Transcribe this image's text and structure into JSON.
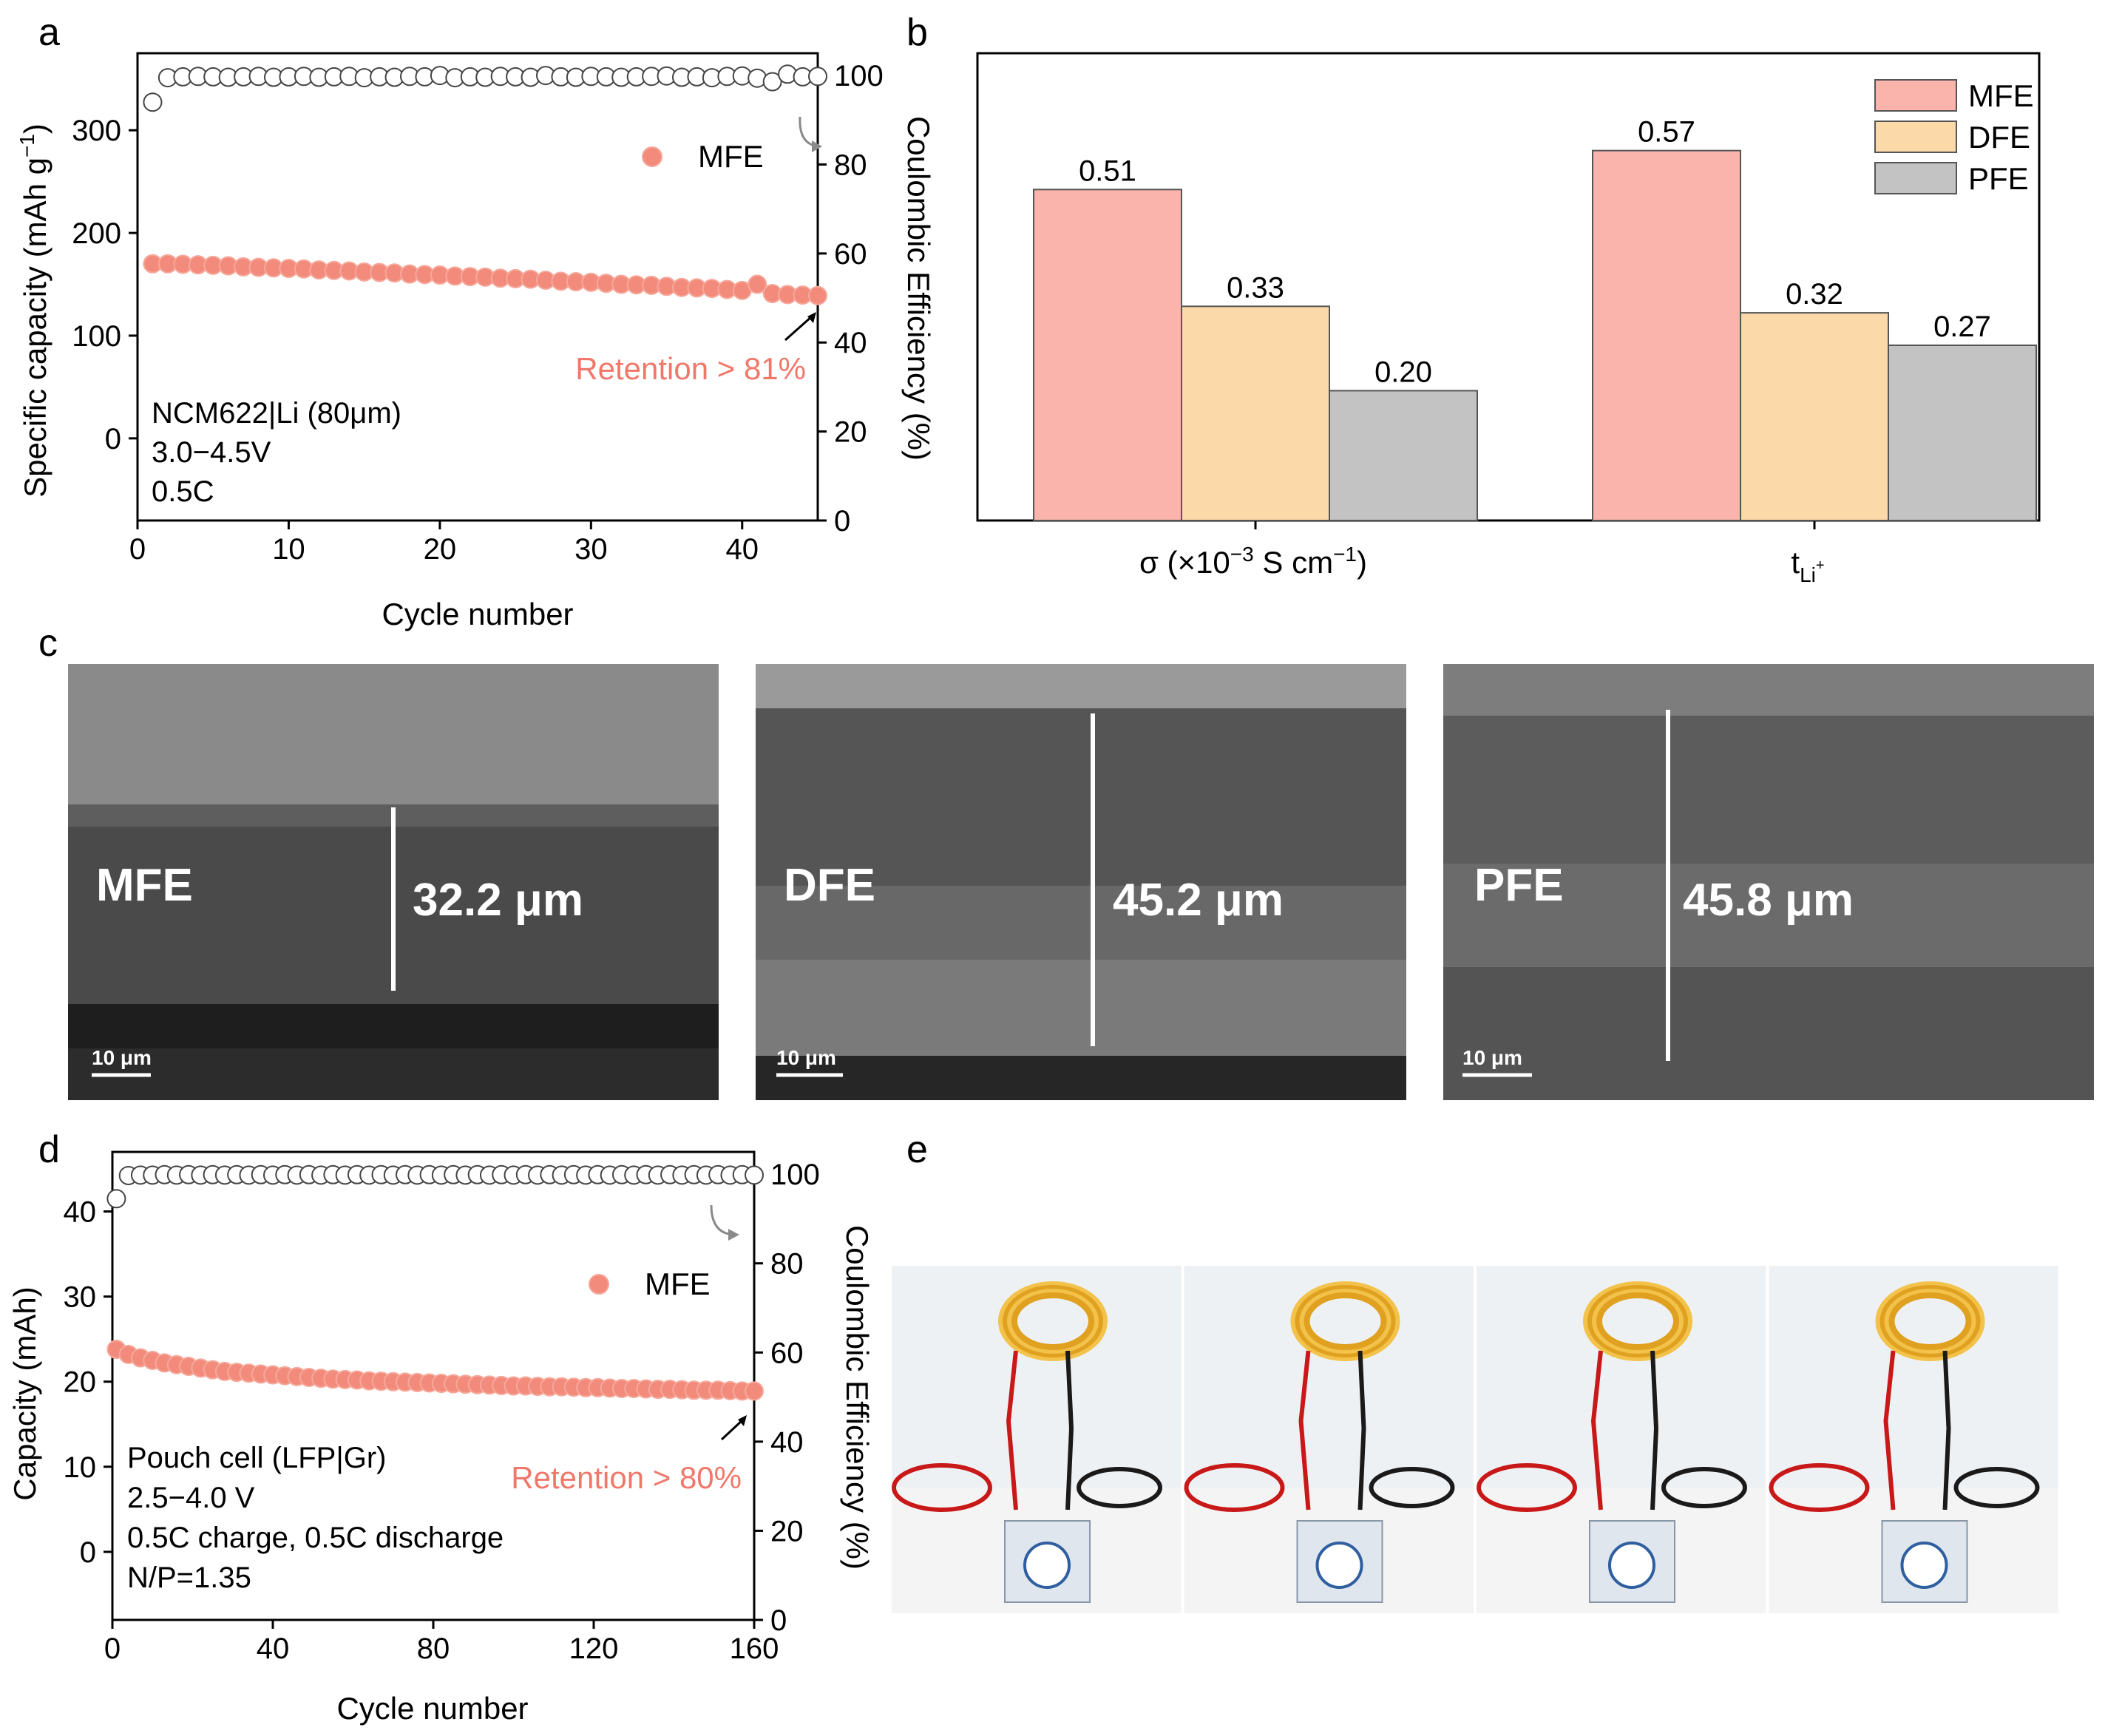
{
  "panel_letters": {
    "a": "a",
    "b": "b",
    "c": "c",
    "d": "d",
    "e": "e"
  },
  "colors": {
    "mfe": "#f28b7b",
    "mfe_bar": "#fbb4ac",
    "dfe_bar": "#fbd9a8",
    "pfe_bar": "#c3c3c3",
    "retention_text": "#f0786a",
    "arrow_gray": "#8a8a8a"
  },
  "chart_data": [
    {
      "id": "a",
      "type": "scatter",
      "xlabel": "Cycle number",
      "ylabel_main": "Specific capacity (mAh g",
      "ylabel_sup": "−1",
      "ylabel_close": ")",
      "y2label": "Coulombic Efficiency (%)",
      "xlim": [
        0,
        45
      ],
      "ylim": [
        -80,
        375
      ],
      "y2lim": [
        0,
        105
      ],
      "xticks": [
        "0",
        "10",
        "20",
        "30",
        "40"
      ],
      "yticks": [
        "0",
        "100",
        "200",
        "300"
      ],
      "y2ticks": [
        "0",
        "20",
        "40",
        "60",
        "80",
        "100"
      ],
      "legend": "MFE",
      "retention_label": "Retention > 81%",
      "notes": [
        "NCM622|Li (80μm)",
        "3.0−4.5V",
        "0.5C"
      ],
      "capacity_series": {
        "name": "MFE",
        "x": [
          1,
          2,
          3,
          4,
          5,
          6,
          7,
          8,
          9,
          10,
          11,
          12,
          13,
          14,
          15,
          16,
          17,
          18,
          19,
          20,
          21,
          22,
          23,
          24,
          25,
          26,
          27,
          28,
          29,
          30,
          31,
          32,
          33,
          34,
          35,
          36,
          37,
          38,
          39,
          40,
          41,
          42,
          43,
          44,
          45
        ],
        "values": [
          170,
          170,
          169.5,
          169,
          168.5,
          168,
          167,
          166.5,
          166,
          165.5,
          165,
          164,
          163.5,
          163,
          162,
          161.5,
          161,
          160,
          159.5,
          159,
          158,
          157.5,
          157,
          156,
          155.5,
          155,
          154,
          153,
          152.5,
          152,
          151,
          150,
          149.5,
          149,
          148,
          147,
          146.5,
          146,
          145,
          144,
          150,
          141,
          140,
          139.5,
          139
        ]
      },
      "ce_series": {
        "name": "CE",
        "x": [
          1,
          2,
          3,
          4,
          5,
          6,
          7,
          8,
          9,
          10,
          11,
          12,
          13,
          14,
          15,
          16,
          17,
          18,
          19,
          20,
          21,
          22,
          23,
          24,
          25,
          26,
          27,
          28,
          29,
          30,
          31,
          32,
          33,
          34,
          35,
          36,
          37,
          38,
          39,
          40,
          41,
          42,
          43,
          44,
          45
        ],
        "values": [
          94,
          99.5,
          99.7,
          99.8,
          99.7,
          99.6,
          99.7,
          99.8,
          99.6,
          99.7,
          99.8,
          99.6,
          99.7,
          99.8,
          99.5,
          99.7,
          99.6,
          99.8,
          99.7,
          100,
          99.5,
          99.7,
          99.6,
          99.8,
          99.7,
          99.6,
          100,
          99.7,
          99.6,
          99.8,
          99.7,
          99.6,
          99.7,
          99.8,
          99.9,
          99.6,
          99.7,
          99.5,
          99.8,
          99.9,
          99.4,
          98.6,
          100.3,
          99.7,
          99.8
        ]
      }
    },
    {
      "id": "b",
      "type": "bar",
      "categories": [
        "σ",
        "t"
      ],
      "category_labels": [
        {
          "main": "σ (×10",
          "sup": "−3",
          "tail": " S cm",
          "sup2": "−1",
          "close": ")"
        },
        {
          "main": "t",
          "sub": "Li",
          "subsup": "+"
        }
      ],
      "series": [
        {
          "name": "MFE",
          "values": [
            0.51,
            0.57
          ]
        },
        {
          "name": "DFE",
          "values": [
            0.33,
            0.32
          ]
        },
        {
          "name": "PFE",
          "values": [
            0.2,
            0.27
          ]
        }
      ],
      "value_labels": [
        [
          "0.51",
          "0.57"
        ],
        [
          "0.33",
          "0.32"
        ],
        [
          "0.20",
          "0.27"
        ]
      ],
      "ylim": [
        0,
        0.72
      ]
    },
    {
      "id": "d",
      "type": "scatter",
      "xlabel": "Cycle number",
      "ylabel": "Capacity (mAh)",
      "y2label": "Coulombic Efficiency (%)",
      "xlim": [
        0,
        160
      ],
      "ylim": [
        -8,
        47
      ],
      "y2lim": [
        0,
        105
      ],
      "xticks": [
        "0",
        "40",
        "80",
        "120",
        "160"
      ],
      "yticks": [
        "0",
        "10",
        "20",
        "30",
        "40"
      ],
      "y2ticks": [
        "0",
        "20",
        "40",
        "60",
        "80",
        "100"
      ],
      "legend": "MFE",
      "retention_label": "Retention > 80%",
      "notes": [
        "Pouch cell (LFP|Gr)",
        "2.5−4.0 V",
        "0.5C charge, 0.5C discharge",
        "N/P=1.35"
      ],
      "capacity_series": {
        "name": "MFE",
        "x": [
          1,
          4,
          7,
          10,
          13,
          16,
          19,
          22,
          25,
          28,
          31,
          34,
          37,
          40,
          43,
          46,
          49,
          52,
          55,
          58,
          61,
          64,
          67,
          70,
          73,
          76,
          79,
          82,
          85,
          88,
          91,
          94,
          97,
          100,
          103,
          106,
          109,
          112,
          115,
          118,
          121,
          124,
          127,
          130,
          133,
          136,
          139,
          142,
          145,
          148,
          151,
          154,
          157,
          160
        ],
        "values": [
          23.8,
          23.2,
          22.8,
          22.5,
          22.2,
          22,
          21.8,
          21.6,
          21.4,
          21.2,
          21.1,
          21,
          20.9,
          20.8,
          20.7,
          20.6,
          20.5,
          20.4,
          20.3,
          20.25,
          20.2,
          20.1,
          20.05,
          20,
          19.95,
          19.9,
          19.85,
          19.8,
          19.75,
          19.7,
          19.65,
          19.6,
          19.55,
          19.5,
          19.5,
          19.45,
          19.4,
          19.4,
          19.35,
          19.3,
          19.3,
          19.25,
          19.2,
          19.2,
          19.15,
          19.1,
          19.1,
          19.05,
          19,
          19,
          19,
          18.95,
          18.9,
          18.9
        ]
      },
      "ce_series": {
        "name": "CE",
        "x": [
          1,
          4,
          7,
          10,
          13,
          16,
          19,
          22,
          25,
          28,
          31,
          34,
          37,
          40,
          43,
          46,
          49,
          52,
          55,
          58,
          61,
          64,
          67,
          70,
          73,
          76,
          79,
          82,
          85,
          88,
          91,
          94,
          97,
          100,
          103,
          106,
          109,
          112,
          115,
          118,
          121,
          124,
          127,
          130,
          133,
          136,
          139,
          142,
          145,
          148,
          151,
          154,
          157,
          160
        ],
        "values": [
          94.5,
          99.7,
          99.8,
          99.8,
          99.9,
          99.8,
          99.9,
          99.8,
          99.9,
          99.8,
          99.9,
          99.8,
          99.9,
          99.8,
          99.9,
          99.8,
          99.9,
          99.8,
          99.9,
          99.8,
          99.9,
          99.8,
          99.9,
          99.8,
          99.9,
          99.8,
          99.9,
          99.8,
          99.9,
          99.8,
          99.9,
          99.8,
          99.9,
          99.8,
          99.9,
          99.8,
          99.9,
          99.8,
          99.9,
          99.8,
          99.9,
          99.8,
          99.9,
          99.8,
          99.9,
          99.8,
          99.9,
          99.8,
          99.9,
          99.8,
          99.9,
          99.8,
          99.9,
          99.8
        ]
      }
    }
  ],
  "sem": [
    {
      "label": "MFE",
      "thickness": "32.2 μm",
      "scale": "10 μm"
    },
    {
      "label": "DFE",
      "thickness": "45.2 μm",
      "scale": "10 μm"
    },
    {
      "label": "PFE",
      "thickness": "45.8 μm",
      "scale": "10 μm"
    }
  ],
  "photos_count": 4
}
